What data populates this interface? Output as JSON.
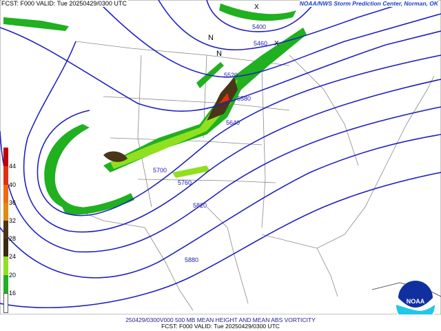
{
  "header": {
    "left": "FCST: F000  VALID: Tue  20250429/0300 UTC",
    "right": "NOAA/NWS Storm Prediction Center, Norman, OK"
  },
  "caption": {
    "line1": "250429/0300V000 500 MB MEAN HEIGHT AND MEAN ABS VORTICITY",
    "line2": "FCST: F000  VALID: Tue  20250429/0300 UTC"
  },
  "colorbar": {
    "labels": [
      "44",
      "40",
      "36",
      "32",
      "28",
      "24",
      "20",
      "16"
    ],
    "colors": [
      "#c00000",
      "#e03010",
      "#f06a10",
      "#e08a10",
      "#4a3518",
      "#4a3518",
      "#90e020",
      "#20b020",
      "#ffffff"
    ]
  },
  "contour_labels": [
    "5400",
    "5460",
    "5520",
    "5580",
    "5640",
    "5700",
    "5760",
    "5820",
    "5880"
  ],
  "markers": [
    "N",
    "N",
    "X",
    "X"
  ],
  "logo": {
    "text": "NOAA"
  },
  "colors": {
    "height_contour": "#2020c0",
    "vorticity_contour": "#9070c0",
    "border": "#808080"
  }
}
